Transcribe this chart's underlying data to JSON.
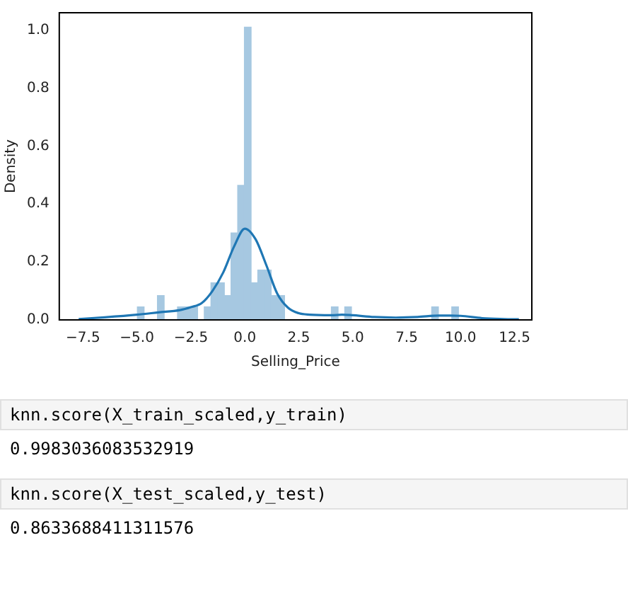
{
  "chart_data": {
    "type": "histogram",
    "xlabel": "Selling_Price",
    "ylabel": "Density",
    "bins": [
      -4.98,
      -4.67,
      -4.36,
      -4.05,
      -3.74,
      -3.43,
      -3.12,
      -2.81,
      -2.5,
      -2.19,
      -1.88,
      -1.57,
      -1.26,
      -0.95,
      -0.64,
      -0.33,
      -0.02,
      0.29,
      0.6,
      0.91,
      1.22,
      1.53,
      1.84,
      2.15,
      2.46,
      2.77,
      3.08,
      3.39,
      3.7,
      4.01,
      4.32,
      4.63,
      4.94,
      5.25,
      5.56,
      5.87,
      6.18,
      6.49,
      6.8,
      7.11,
      7.42,
      7.73,
      8.04,
      8.35,
      8.66,
      8.97,
      9.28,
      9.59,
      9.9
    ],
    "values": [
      0.045,
      0,
      0,
      0.084,
      0,
      0,
      0.045,
      0.045,
      0.045,
      0,
      0.045,
      0.128,
      0.128,
      0.084,
      0.3,
      0.464,
      1.01,
      0.128,
      0.172,
      0.172,
      0.084,
      0.084,
      0,
      0,
      0,
      0,
      0,
      0,
      0,
      0.045,
      0,
      0.045,
      0,
      0,
      0,
      0,
      0,
      0,
      0,
      0,
      0,
      0,
      0,
      0,
      0.045,
      0,
      0,
      0.045
    ],
    "color": "#a6c8e1",
    "series": [
      {
        "type": "line",
        "color": "#1f77b4",
        "x": [
          -7.7,
          -6.5,
          -5,
          -4,
          -3,
          -2.5,
          -2,
          -1.5,
          -1,
          -0.5,
          0,
          0.5,
          1,
          1.5,
          2,
          2.5,
          3,
          4,
          4.5,
          5,
          6,
          7,
          8,
          9,
          9.5,
          10,
          11,
          12,
          12.7
        ],
        "values": [
          0.003,
          0.009,
          0.018,
          0.026,
          0.034,
          0.044,
          0.058,
          0.1,
          0.164,
          0.253,
          0.315,
          0.278,
          0.188,
          0.091,
          0.042,
          0.023,
          0.018,
          0.016,
          0.018,
          0.016,
          0.01,
          0.008,
          0.01,
          0.015,
          0.015,
          0.014,
          0.006,
          0.003,
          0.002
        ]
      }
    ],
    "xlim": [
      -8.6,
      13.3
    ],
    "ylim": [
      0,
      1.06
    ],
    "xticks": [
      {
        "value": -7.5,
        "label": "−7.5"
      },
      {
        "value": -5,
        "label": "−5.0"
      },
      {
        "value": -2.5,
        "label": "−2.5"
      },
      {
        "value": 0,
        "label": "0.0"
      },
      {
        "value": 2.5,
        "label": "2.5"
      },
      {
        "value": 5,
        "label": "5.0"
      },
      {
        "value": 7.5,
        "label": "7.5"
      },
      {
        "value": 10,
        "label": "10.0"
      },
      {
        "value": 12.5,
        "label": "12.5"
      }
    ],
    "yticks": [
      {
        "value": 0,
        "label": "0.0"
      },
      {
        "value": 0.2,
        "label": "0.2"
      },
      {
        "value": 0.4,
        "label": "0.4"
      },
      {
        "value": 0.6,
        "label": "0.6"
      },
      {
        "value": 0.8,
        "label": "0.8"
      },
      {
        "value": 1,
        "label": "1.0"
      }
    ],
    "grid": false,
    "legend": false,
    "marker": "none",
    "line_style": "solid",
    "annotations": [
      "knn.score(X_train_scaled,y_train)",
      "0.9983036083532919",
      "knn.score(X_test_scaled,y_test)",
      "0.8633688411311576"
    ]
  }
}
